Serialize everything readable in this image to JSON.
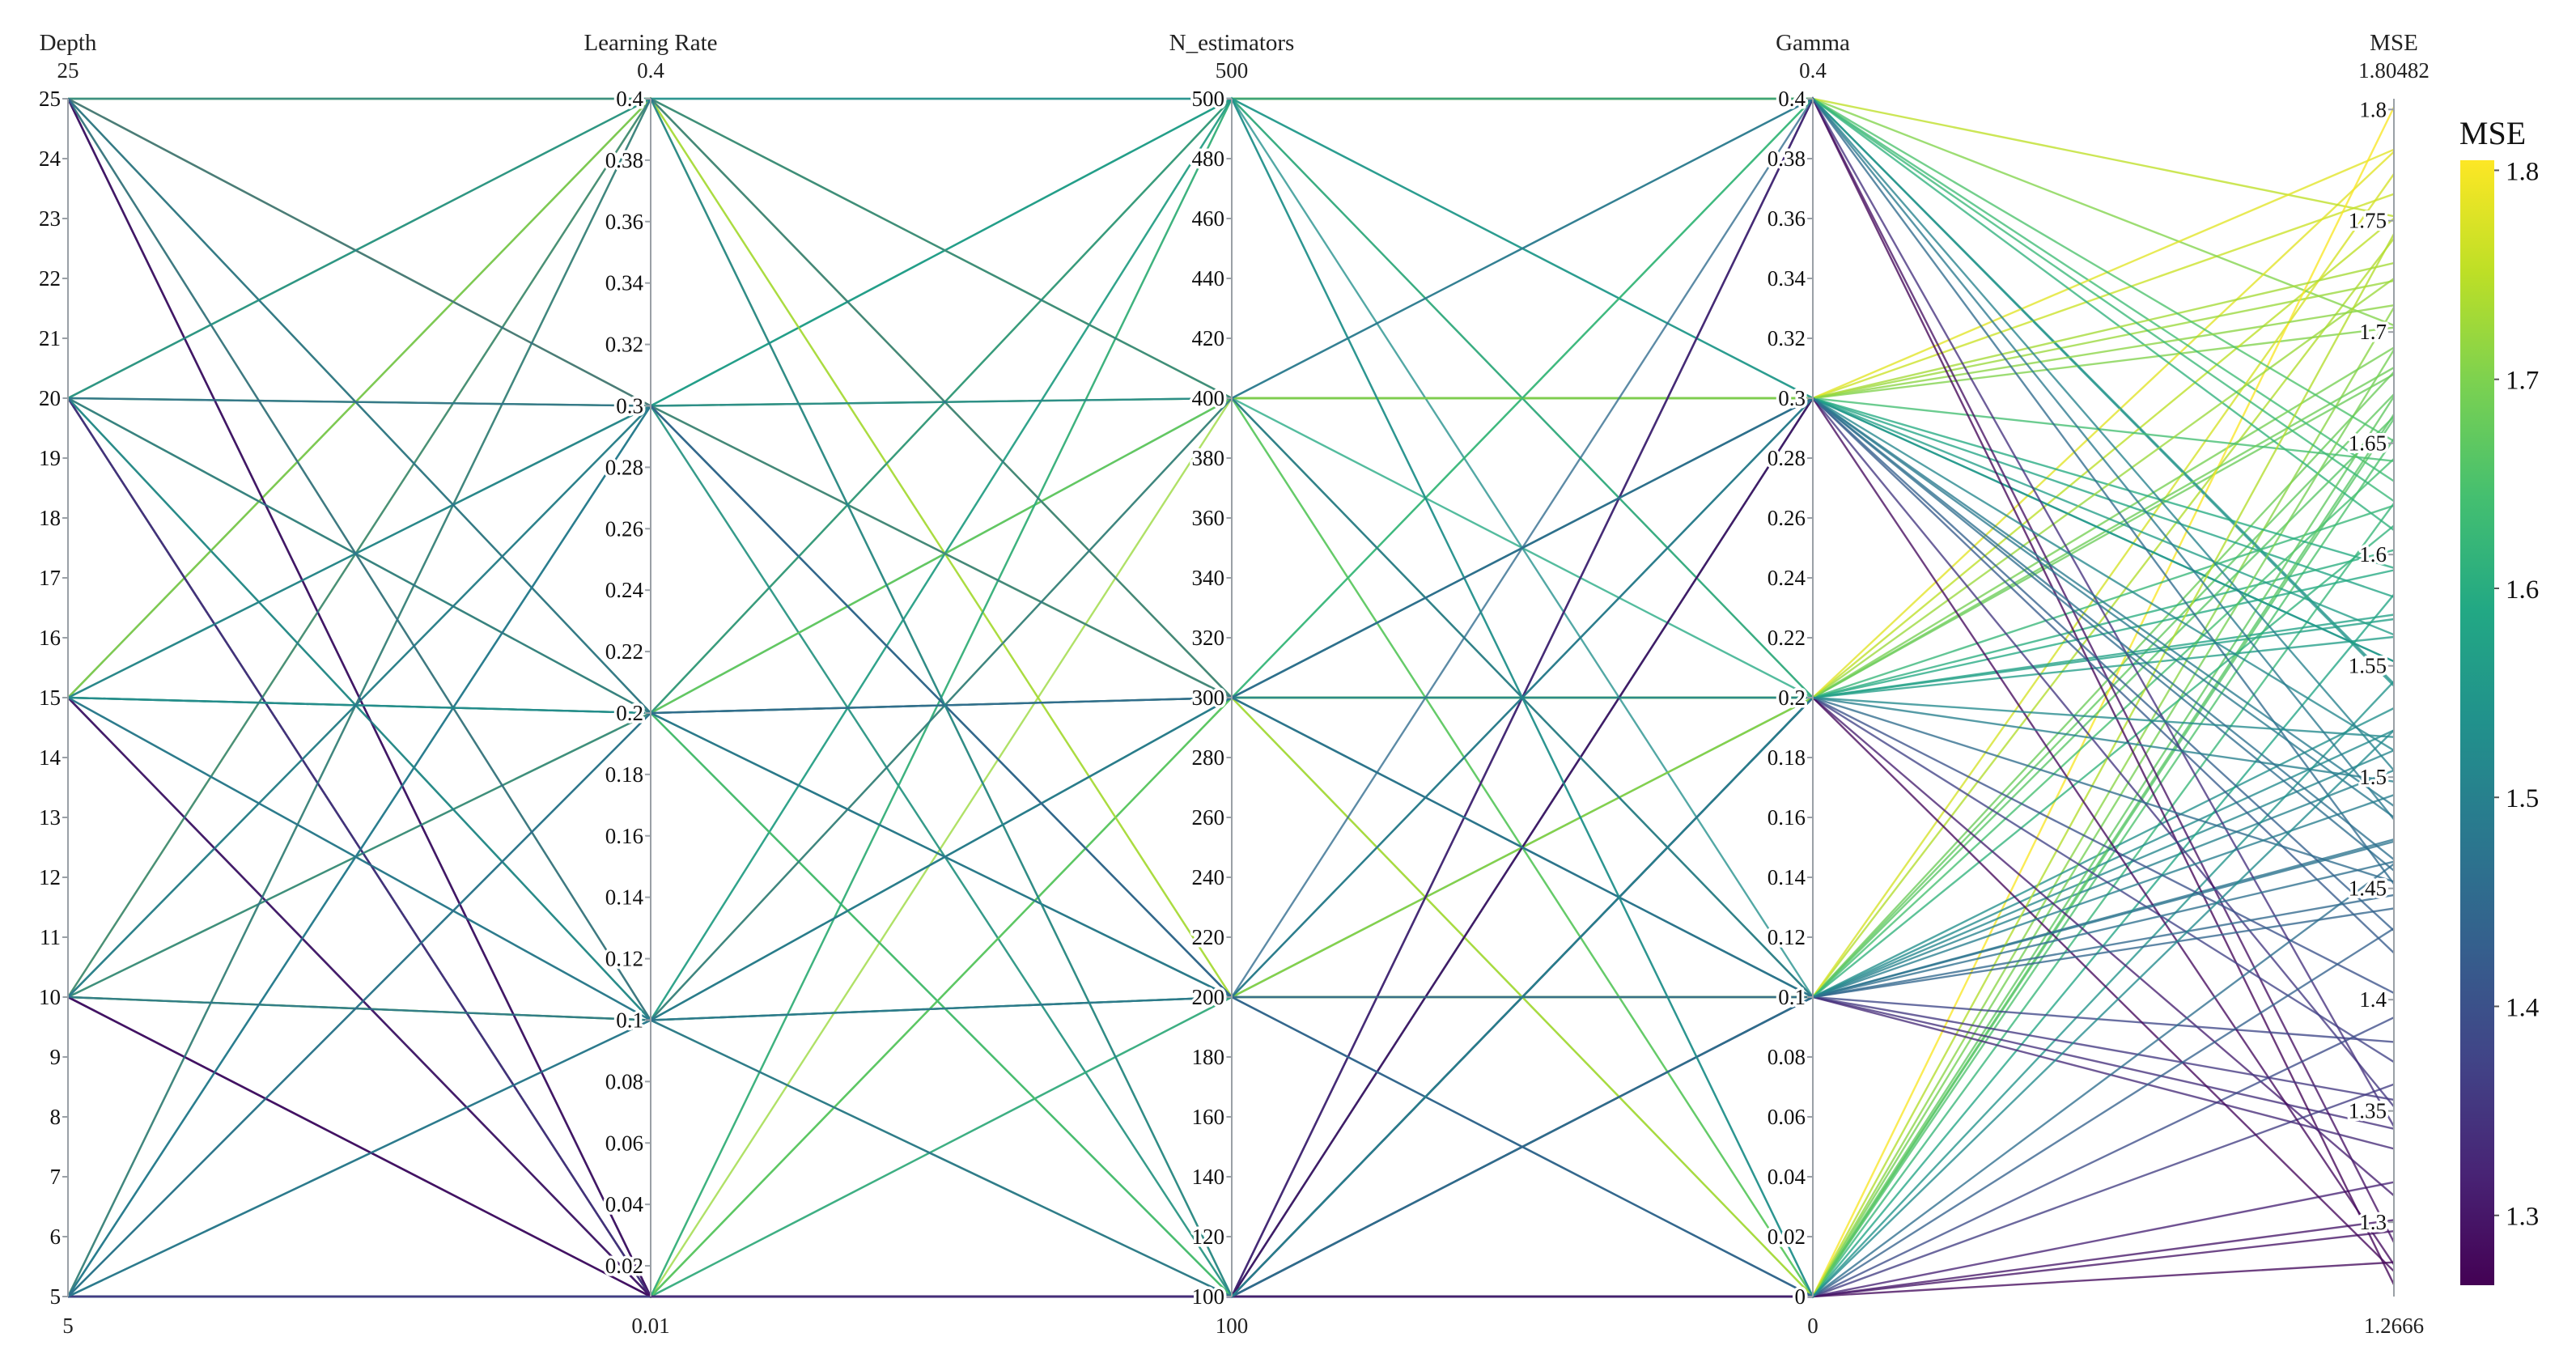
{
  "chart_data": {
    "type": "parallel_coordinates",
    "colorscale": "viridis",
    "colorbar": {
      "title": "MSE",
      "range": [
        1.2666,
        1.80482
      ],
      "ticks": [
        "1.3",
        "1.4",
        "1.5",
        "1.6",
        "1.7",
        "1.8"
      ]
    },
    "axes": [
      {
        "key": "depth",
        "label": "Depth",
        "range": [
          5,
          25
        ],
        "range_labels": [
          "25",
          "5"
        ],
        "ticks": [
          5,
          6,
          7,
          8,
          9,
          10,
          11,
          12,
          13,
          14,
          15,
          16,
          17,
          18,
          19,
          20,
          21,
          22,
          23,
          24,
          25
        ],
        "tick_labels": [
          "5",
          "6",
          "7",
          "8",
          "9",
          "10",
          "11",
          "12",
          "13",
          "14",
          "15",
          "16",
          "17",
          "18",
          "19",
          "20",
          "21",
          "22",
          "23",
          "24",
          "25"
        ]
      },
      {
        "key": "lr",
        "label": "Learning Rate",
        "range": [
          0.01,
          0.4
        ],
        "range_labels": [
          "0.4",
          "0.01"
        ],
        "ticks": [
          0.02,
          0.04,
          0.06,
          0.08,
          0.1,
          0.12,
          0.14,
          0.16,
          0.18,
          0.2,
          0.22,
          0.24,
          0.26,
          0.28,
          0.3,
          0.32,
          0.34,
          0.36,
          0.38,
          0.4
        ],
        "tick_labels": [
          "0.02",
          "0.04",
          "0.06",
          "0.08",
          "0.1",
          "0.12",
          "0.14",
          "0.16",
          "0.18",
          "0.2",
          "0.22",
          "0.24",
          "0.26",
          "0.28",
          "0.3",
          "0.32",
          "0.34",
          "0.36",
          "0.38",
          "0.4"
        ]
      },
      {
        "key": "n",
        "label": "N_estimators",
        "range": [
          100,
          500
        ],
        "range_labels": [
          "500",
          "100"
        ],
        "ticks": [
          100,
          120,
          140,
          160,
          180,
          200,
          220,
          240,
          260,
          280,
          300,
          320,
          340,
          360,
          380,
          400,
          420,
          440,
          460,
          480,
          500
        ],
        "tick_labels": [
          "100",
          "120",
          "140",
          "160",
          "180",
          "200",
          "220",
          "240",
          "260",
          "280",
          "300",
          "320",
          "340",
          "360",
          "380",
          "400",
          "420",
          "440",
          "460",
          "480",
          "500"
        ]
      },
      {
        "key": "gamma",
        "label": "Gamma",
        "range": [
          0,
          0.4
        ],
        "range_labels": [
          "0.4",
          "0"
        ],
        "ticks": [
          0,
          0.02,
          0.04,
          0.06,
          0.08,
          0.1,
          0.12,
          0.14,
          0.16,
          0.18,
          0.2,
          0.22,
          0.24,
          0.26,
          0.28,
          0.3,
          0.32,
          0.34,
          0.36,
          0.38,
          0.4
        ],
        "tick_labels": [
          "0",
          "0.02",
          "0.04",
          "0.06",
          "0.08",
          "0.1",
          "0.12",
          "0.14",
          "0.16",
          "0.18",
          "0.2",
          "0.22",
          "0.24",
          "0.26",
          "0.28",
          "0.3",
          "0.32",
          "0.34",
          "0.36",
          "0.38",
          "0.4"
        ]
      },
      {
        "key": "mse",
        "label": "MSE",
        "range": [
          1.2666,
          1.80482
        ],
        "range_labels": [
          "1.80482",
          "1.2666"
        ],
        "ticks": [
          1.3,
          1.35,
          1.4,
          1.45,
          1.5,
          1.55,
          1.6,
          1.65,
          1.7,
          1.75,
          1.8
        ],
        "tick_labels": [
          "1.3",
          "1.35",
          "1.4",
          "1.45",
          "1.5",
          "1.55",
          "1.6",
          "1.65",
          "1.7",
          "1.75",
          "1.8"
        ]
      }
    ],
    "lines": [
      [
        25,
        0.4,
        500,
        0.4,
        1.541
      ],
      [
        25,
        0.3,
        400,
        0.3,
        1.702
      ],
      [
        25,
        0.2,
        300,
        0.2,
        1.751
      ],
      [
        25,
        0.1,
        200,
        0.1,
        1.682
      ],
      [
        25,
        0.01,
        100,
        0.0,
        1.623
      ],
      [
        20,
        0.4,
        400,
        0.3,
        1.762
      ],
      [
        20,
        0.3,
        300,
        0.2,
        1.681
      ],
      [
        20,
        0.2,
        200,
        0.1,
        1.742
      ],
      [
        20,
        0.1,
        100,
        0.0,
        1.652
      ],
      [
        20,
        0.01,
        500,
        0.4,
        1.703
      ],
      [
        15,
        0.4,
        300,
        0.2,
        1.781
      ],
      [
        15,
        0.3,
        200,
        0.1,
        1.672
      ],
      [
        15,
        0.2,
        100,
        0.0,
        1.711
      ],
      [
        15,
        0.1,
        500,
        0.4,
        1.633
      ],
      [
        15,
        0.01,
        400,
        0.3,
        1.723
      ],
      [
        10,
        0.4,
        200,
        0.1,
        1.771
      ],
      [
        10,
        0.3,
        100,
        0.0,
        1.661
      ],
      [
        10,
        0.2,
        500,
        0.4,
        1.752
      ],
      [
        10,
        0.1,
        400,
        0.3,
        1.782
      ],
      [
        10,
        0.01,
        300,
        0.2,
        1.693
      ],
      [
        5,
        0.4,
        100,
        0.0,
        1.801
      ],
      [
        5,
        0.3,
        500,
        0.4,
        1.542
      ],
      [
        5,
        0.2,
        400,
        0.3,
        1.581
      ],
      [
        5,
        0.1,
        300,
        0.2,
        1.602
      ],
      [
        5,
        0.01,
        200,
        0.1,
        1.503
      ],
      [
        25,
        0.3,
        500,
        0.3,
        1.552
      ],
      [
        20,
        0.4,
        300,
        0.4,
        1.611
      ],
      [
        15,
        0.2,
        400,
        0.2,
        1.593
      ],
      [
        10,
        0.1,
        200,
        0.3,
        1.642
      ],
      [
        5,
        0.01,
        100,
        0.2,
        1.573
      ],
      [
        25,
        0.1,
        400,
        0.1,
        1.662
      ],
      [
        20,
        0.2,
        500,
        0.2,
        1.684
      ],
      [
        15,
        0.3,
        100,
        0.1,
        1.521
      ],
      [
        10,
        0.4,
        300,
        0.3,
        1.731
      ],
      [
        5,
        0.2,
        200,
        0.2,
        1.563
      ],
      [
        25,
        0.2,
        100,
        0.3,
        1.564
      ],
      [
        20,
        0.01,
        200,
        0.2,
        1.622
      ],
      [
        15,
        0.4,
        500,
        0.1,
        1.531
      ],
      [
        10,
        0.2,
        400,
        0.0,
        1.692
      ],
      [
        5,
        0.3,
        300,
        0.1,
        1.512
      ],
      [
        25,
        0.01,
        300,
        0.1,
        1.643
      ],
      [
        20,
        0.1,
        100,
        0.3,
        1.594
      ],
      [
        15,
        0.01,
        300,
        0.0,
        1.671
      ],
      [
        10,
        0.3,
        500,
        0.2,
        1.571
      ],
      [
        5,
        0.4,
        400,
        0.0,
        1.663
      ],
      [
        25,
        0.4,
        200,
        0.2,
        1.724
      ],
      [
        20,
        0.3,
        400,
        0.1,
        1.613
      ],
      [
        15,
        0.1,
        200,
        0.0,
        1.543
      ],
      [
        10,
        0.01,
        100,
        0.1,
        1.472
      ],
      [
        5,
        0.1,
        500,
        0.3,
        1.552
      ],
      [
        25,
        0.3,
        300,
        0.0,
        1.744
      ],
      [
        20,
        0.2,
        100,
        0.4,
        1.651
      ],
      [
        15,
        0.4,
        400,
        0.3,
        1.712
      ],
      [
        10,
        0.1,
        300,
        0.4,
        1.624
      ],
      [
        5,
        0.01,
        500,
        0.0,
        1.582
      ],
      [
        25,
        0.01,
        100,
        0.0,
        1.301
      ],
      [
        20,
        0.01,
        100,
        0.0,
        1.282
      ],
      [
        15,
        0.01,
        100,
        0.1,
        1.342
      ],
      [
        10,
        0.01,
        100,
        0.0,
        1.318
      ],
      [
        5,
        0.01,
        100,
        0.4,
        1.272
      ],
      [
        25,
        0.01,
        100,
        0.3,
        1.352
      ],
      [
        20,
        0.01,
        100,
        0.4,
        1.291
      ],
      [
        15,
        0.01,
        100,
        0.2,
        1.312
      ],
      [
        10,
        0.01,
        100,
        0.1,
        1.381
      ],
      [
        5,
        0.01,
        100,
        0.2,
        1.403
      ],
      [
        25,
        0.01,
        100,
        0.2,
        1.372
      ],
      [
        20,
        0.01,
        100,
        0.3,
        1.421
      ],
      [
        15,
        0.01,
        100,
        0.0,
        1.362
      ],
      [
        10,
        0.01,
        100,
        0.4,
        1.343
      ],
      [
        5,
        0.01,
        100,
        0.0,
        1.392
      ],
      [
        25,
        0.01,
        100,
        0.3,
        1.281
      ],
      [
        20,
        0.01,
        100,
        0.1,
        1.333
      ],
      [
        15,
        0.01,
        100,
        0.0,
        1.296
      ],
      [
        10,
        0.01,
        100,
        0.2,
        1.278
      ],
      [
        5,
        0.01,
        100,
        0.1,
        1.355
      ],
      [
        25,
        0.2,
        200,
        0.4,
        1.452
      ],
      [
        20,
        0.3,
        200,
        0.1,
        1.441
      ],
      [
        15,
        0.1,
        400,
        0.1,
        1.462
      ],
      [
        10,
        0.2,
        200,
        0.3,
        1.487
      ],
      [
        5,
        0.3,
        200,
        0.3,
        1.482
      ],
      [
        25,
        0.1,
        300,
        0.3,
        1.431
      ],
      [
        20,
        0.1,
        300,
        0.2,
        1.498
      ],
      [
        15,
        0.2,
        300,
        0.3,
        1.512
      ],
      [
        10,
        0.1,
        100,
        0.2,
        1.453
      ],
      [
        5,
        0.2,
        300,
        0.1,
        1.447
      ],
      [
        25,
        0.4,
        100,
        0.1,
        1.492
      ],
      [
        20,
        0.2,
        300,
        0.3,
        1.458
      ],
      [
        15,
        0.3,
        400,
        0.4,
        1.503
      ],
      [
        10,
        0.3,
        300,
        0.1,
        1.471
      ],
      [
        5,
        0.1,
        200,
        0.0,
        1.461
      ],
      [
        25,
        0.3,
        200,
        0.0,
        1.432
      ],
      [
        20,
        0.4,
        100,
        0.2,
        1.518
      ],
      [
        15,
        0.2,
        500,
        0.0,
        1.521
      ],
      [
        10,
        0.4,
        400,
        0.4,
        1.481
      ],
      [
        5,
        0.4,
        300,
        0.3,
        1.463
      ]
    ]
  }
}
